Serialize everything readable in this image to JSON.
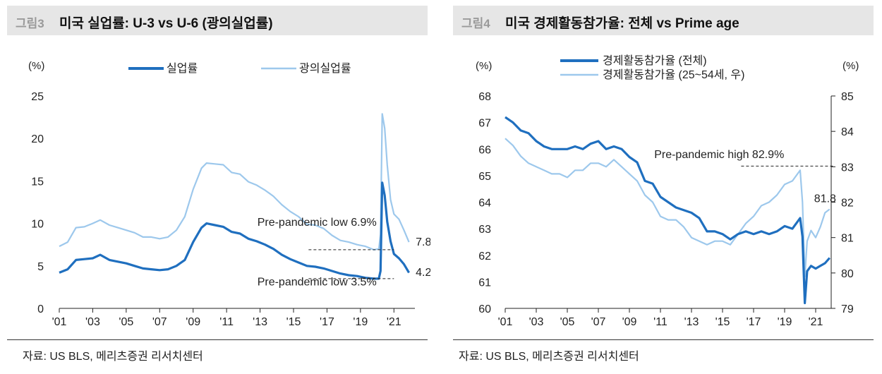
{
  "colors": {
    "dark": "#1f6fbf",
    "light": "#9dc8ec",
    "axis": "#222222",
    "title_bg": "#e6e6e6",
    "figlabel": "#9a9a9a"
  },
  "chart_data": [
    {
      "type": "line",
      "fig_label": "그림3",
      "title": "미국 실업률: U-3 vs U-6 (광의실업률)",
      "unit_label": "(%)",
      "source": "자료: US BLS, 메리츠증권 리서치센터",
      "xlim": [
        2001.0,
        2022.0
      ],
      "ylim": [
        0,
        25
      ],
      "y_ticks": [
        0,
        5,
        10,
        15,
        20,
        25
      ],
      "x_ticks": [
        {
          "v": 2001,
          "label": "'01"
        },
        {
          "v": 2003,
          "label": "'03"
        },
        {
          "v": 2005,
          "label": "'05"
        },
        {
          "v": 2007,
          "label": "'07"
        },
        {
          "v": 2009,
          "label": "'09"
        },
        {
          "v": 2011,
          "label": "'11"
        },
        {
          "v": 2013,
          "label": "'13"
        },
        {
          "v": 2015,
          "label": "'15"
        },
        {
          "v": 2017,
          "label": "'17"
        },
        {
          "v": 2019,
          "label": "'19"
        },
        {
          "v": 2021,
          "label": "'21"
        }
      ],
      "series": [
        {
          "name": "실업률",
          "color_key": "dark",
          "points": [
            [
              2001.0,
              4.2
            ],
            [
              2001.5,
              4.6
            ],
            [
              2002.0,
              5.7
            ],
            [
              2002.5,
              5.8
            ],
            [
              2003.0,
              5.9
            ],
            [
              2003.45,
              6.3
            ],
            [
              2004.0,
              5.7
            ],
            [
              2004.5,
              5.5
            ],
            [
              2005.0,
              5.3
            ],
            [
              2005.5,
              5.0
            ],
            [
              2006.0,
              4.7
            ],
            [
              2006.5,
              4.6
            ],
            [
              2007.0,
              4.5
            ],
            [
              2007.5,
              4.6
            ],
            [
              2008.0,
              5.0
            ],
            [
              2008.5,
              5.7
            ],
            [
              2009.0,
              7.8
            ],
            [
              2009.5,
              9.5
            ],
            [
              2009.8,
              10.0
            ],
            [
              2010.3,
              9.8
            ],
            [
              2010.8,
              9.6
            ],
            [
              2011.3,
              9.0
            ],
            [
              2011.8,
              8.8
            ],
            [
              2012.3,
              8.2
            ],
            [
              2012.8,
              7.9
            ],
            [
              2013.3,
              7.5
            ],
            [
              2013.8,
              7.0
            ],
            [
              2014.3,
              6.3
            ],
            [
              2014.8,
              5.8
            ],
            [
              2015.3,
              5.4
            ],
            [
              2015.8,
              5.0
            ],
            [
              2016.3,
              4.9
            ],
            [
              2016.8,
              4.7
            ],
            [
              2017.3,
              4.4
            ],
            [
              2017.8,
              4.1
            ],
            [
              2018.3,
              3.9
            ],
            [
              2018.8,
              3.8
            ],
            [
              2019.3,
              3.6
            ],
            [
              2019.8,
              3.5
            ],
            [
              2020.1,
              3.5
            ],
            [
              2020.2,
              4.4
            ],
            [
              2020.3,
              14.8
            ],
            [
              2020.45,
              13.3
            ],
            [
              2020.6,
              10.2
            ],
            [
              2020.8,
              7.9
            ],
            [
              2021.0,
              6.4
            ],
            [
              2021.3,
              5.9
            ],
            [
              2021.6,
              5.2
            ],
            [
              2021.9,
              4.2
            ]
          ]
        },
        {
          "name": "광의실업률",
          "color_key": "light",
          "points": [
            [
              2001.0,
              7.3
            ],
            [
              2001.5,
              7.8
            ],
            [
              2002.0,
              9.5
            ],
            [
              2002.5,
              9.6
            ],
            [
              2003.0,
              10.0
            ],
            [
              2003.45,
              10.4
            ],
            [
              2004.0,
              9.8
            ],
            [
              2004.5,
              9.5
            ],
            [
              2005.0,
              9.2
            ],
            [
              2005.5,
              8.9
            ],
            [
              2006.0,
              8.4
            ],
            [
              2006.5,
              8.4
            ],
            [
              2007.0,
              8.2
            ],
            [
              2007.5,
              8.4
            ],
            [
              2008.0,
              9.2
            ],
            [
              2008.5,
              10.8
            ],
            [
              2009.0,
              14.0
            ],
            [
              2009.5,
              16.5
            ],
            [
              2009.8,
              17.1
            ],
            [
              2010.3,
              17.0
            ],
            [
              2010.8,
              16.9
            ],
            [
              2011.3,
              16.0
            ],
            [
              2011.8,
              15.8
            ],
            [
              2012.3,
              14.9
            ],
            [
              2012.8,
              14.5
            ],
            [
              2013.3,
              13.9
            ],
            [
              2013.8,
              13.2
            ],
            [
              2014.3,
              12.2
            ],
            [
              2014.8,
              11.4
            ],
            [
              2015.3,
              10.8
            ],
            [
              2015.8,
              9.9
            ],
            [
              2016.3,
              9.8
            ],
            [
              2016.8,
              9.4
            ],
            [
              2017.3,
              8.6
            ],
            [
              2017.8,
              8.0
            ],
            [
              2018.3,
              7.8
            ],
            [
              2018.8,
              7.5
            ],
            [
              2019.3,
              7.3
            ],
            [
              2019.8,
              6.9
            ],
            [
              2020.1,
              7.0
            ],
            [
              2020.2,
              8.7
            ],
            [
              2020.3,
              22.9
            ],
            [
              2020.45,
              21.2
            ],
            [
              2020.6,
              16.9
            ],
            [
              2020.8,
              12.8
            ],
            [
              2021.0,
              11.1
            ],
            [
              2021.3,
              10.5
            ],
            [
              2021.6,
              9.2
            ],
            [
              2021.9,
              7.8
            ]
          ]
        }
      ],
      "legend": [
        {
          "label": "실업률",
          "color_key": "dark"
        },
        {
          "label": "광의실업률",
          "color_key": "light"
        }
      ],
      "annotations": [
        {
          "text": "Pre-pandemic low 6.9%",
          "x": 2016.4,
          "y": 10.2,
          "line_from": 2015.9,
          "line_to": 2021.0,
          "line_y": 6.9
        },
        {
          "text": "Pre-pandemic low 3.5%",
          "x": 2016.4,
          "y": 3.2,
          "line_from": 2015.9,
          "line_to": 2021.0,
          "line_y": 3.5
        }
      ],
      "end_labels": [
        {
          "text": "7.8",
          "x": 2022.3,
          "y": 7.9
        },
        {
          "text": "4.2",
          "x": 2022.3,
          "y": 4.3
        }
      ]
    },
    {
      "type": "line",
      "fig_label": "그림4",
      "title": "미국 경제활동참가율: 전체 vs Prime age",
      "unit_label_left": "(%)",
      "unit_label_right": "(%)",
      "source": "자료: US BLS, 메리츠증권 리서치센터",
      "xlim": [
        2001.0,
        2022.0
      ],
      "ylim_left": [
        60,
        68
      ],
      "ylim_right": [
        79,
        85
      ],
      "y_ticks_left": [
        60,
        61,
        62,
        63,
        64,
        65,
        66,
        67,
        68
      ],
      "y_ticks_right": [
        79,
        80,
        81,
        82,
        83,
        84,
        85
      ],
      "x_ticks": [
        {
          "v": 2001,
          "label": "'01"
        },
        {
          "v": 2003,
          "label": "'03"
        },
        {
          "v": 2005,
          "label": "'05"
        },
        {
          "v": 2007,
          "label": "'07"
        },
        {
          "v": 2009,
          "label": "'09"
        },
        {
          "v": 2011,
          "label": "'11"
        },
        {
          "v": 2013,
          "label": "'13"
        },
        {
          "v": 2015,
          "label": "'15"
        },
        {
          "v": 2017,
          "label": "'17"
        },
        {
          "v": 2019,
          "label": "'19"
        },
        {
          "v": 2021,
          "label": "'21"
        }
      ],
      "series": [
        {
          "name": "경제활동참가율 (전체)",
          "axis": "left",
          "color_key": "dark",
          "points": [
            [
              2001.0,
              67.2
            ],
            [
              2001.5,
              67.0
            ],
            [
              2002.0,
              66.7
            ],
            [
              2002.5,
              66.6
            ],
            [
              2003.0,
              66.3
            ],
            [
              2003.5,
              66.1
            ],
            [
              2004.0,
              66.0
            ],
            [
              2004.5,
              66.0
            ],
            [
              2005.0,
              66.0
            ],
            [
              2005.5,
              66.1
            ],
            [
              2006.0,
              66.0
            ],
            [
              2006.5,
              66.2
            ],
            [
              2007.0,
              66.3
            ],
            [
              2007.5,
              66.0
            ],
            [
              2008.0,
              66.1
            ],
            [
              2008.5,
              66.0
            ],
            [
              2009.0,
              65.7
            ],
            [
              2009.5,
              65.5
            ],
            [
              2010.0,
              64.8
            ],
            [
              2010.5,
              64.7
            ],
            [
              2011.0,
              64.2
            ],
            [
              2011.5,
              64.0
            ],
            [
              2012.0,
              63.8
            ],
            [
              2012.5,
              63.7
            ],
            [
              2013.0,
              63.6
            ],
            [
              2013.5,
              63.4
            ],
            [
              2014.0,
              62.9
            ],
            [
              2014.5,
              62.9
            ],
            [
              2015.0,
              62.8
            ],
            [
              2015.5,
              62.6
            ],
            [
              2016.0,
              62.8
            ],
            [
              2016.5,
              62.9
            ],
            [
              2017.0,
              62.8
            ],
            [
              2017.5,
              62.9
            ],
            [
              2018.0,
              62.8
            ],
            [
              2018.5,
              62.9
            ],
            [
              2019.0,
              63.1
            ],
            [
              2019.5,
              63.0
            ],
            [
              2020.0,
              63.4
            ],
            [
              2020.15,
              62.7
            ],
            [
              2020.3,
              60.2
            ],
            [
              2020.45,
              61.4
            ],
            [
              2020.7,
              61.6
            ],
            [
              2021.0,
              61.5
            ],
            [
              2021.3,
              61.6
            ],
            [
              2021.6,
              61.7
            ],
            [
              2021.9,
              61.9
            ]
          ]
        },
        {
          "name": "경제활동참가율 (25~54세, 우)",
          "axis": "right",
          "color_key": "light",
          "points": [
            [
              2001.0,
              83.8
            ],
            [
              2001.5,
              83.6
            ],
            [
              2002.0,
              83.3
            ],
            [
              2002.5,
              83.1
            ],
            [
              2003.0,
              83.0
            ],
            [
              2003.5,
              82.9
            ],
            [
              2004.0,
              82.8
            ],
            [
              2004.5,
              82.8
            ],
            [
              2005.0,
              82.7
            ],
            [
              2005.5,
              82.9
            ],
            [
              2006.0,
              82.9
            ],
            [
              2006.5,
              83.1
            ],
            [
              2007.0,
              83.1
            ],
            [
              2007.5,
              83.0
            ],
            [
              2008.0,
              83.2
            ],
            [
              2008.5,
              83.0
            ],
            [
              2009.0,
              82.8
            ],
            [
              2009.5,
              82.6
            ],
            [
              2010.0,
              82.2
            ],
            [
              2010.5,
              82.0
            ],
            [
              2011.0,
              81.6
            ],
            [
              2011.5,
              81.5
            ],
            [
              2012.0,
              81.5
            ],
            [
              2012.5,
              81.3
            ],
            [
              2013.0,
              81.0
            ],
            [
              2013.5,
              80.9
            ],
            [
              2014.0,
              80.8
            ],
            [
              2014.5,
              80.9
            ],
            [
              2015.0,
              80.9
            ],
            [
              2015.5,
              80.8
            ],
            [
              2016.0,
              81.1
            ],
            [
              2016.5,
              81.4
            ],
            [
              2017.0,
              81.6
            ],
            [
              2017.5,
              81.9
            ],
            [
              2018.0,
              82.0
            ],
            [
              2018.5,
              82.2
            ],
            [
              2019.0,
              82.5
            ],
            [
              2019.5,
              82.6
            ],
            [
              2020.0,
              82.9
            ],
            [
              2020.15,
              82.0
            ],
            [
              2020.3,
              79.9
            ],
            [
              2020.45,
              80.9
            ],
            [
              2020.7,
              81.2
            ],
            [
              2021.0,
              81.0
            ],
            [
              2021.3,
              81.3
            ],
            [
              2021.6,
              81.7
            ],
            [
              2021.9,
              81.8
            ]
          ]
        }
      ],
      "legend": [
        {
          "label": "경제활동참가율 (전체)",
          "color_key": "dark"
        },
        {
          "label": "경제활동참가율 (25~54세, 우)",
          "color_key": "light"
        }
      ],
      "annotations": [
        {
          "text": "Pre-pandemic high 82.9%",
          "x": 2010.6,
          "y_right": 83.25,
          "line_from": 2016.2,
          "line_to": 2022.2,
          "line_y_right": 83.02
        }
      ],
      "end_labels": [
        {
          "text": "81.8",
          "x": 2020.9,
          "y_right": 82.0
        }
      ]
    }
  ]
}
